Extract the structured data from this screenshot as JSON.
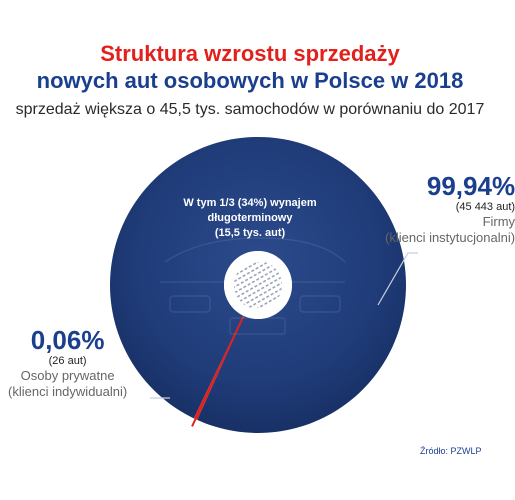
{
  "title_line1": "Struktura wzrostu sprzedaży",
  "title_line2": "nowych aut osobowych w Polsce w 2018",
  "subtitle": "sprzedaż większa o 45,5 tys. samochodów w porównaniu do 2017",
  "source": "Źródło: PZWLP",
  "colors": {
    "title_red": "#e2211c",
    "navy": "#1b3f8f",
    "donut": "#1f3b78",
    "private_slice": "#e2211c"
  },
  "chart_data": {
    "type": "pie",
    "variant": "donut",
    "title": "Struktura wzrostu sprzedaży nowych aut osobowych w Polsce w 2018",
    "slices": [
      {
        "name": "Firmy",
        "description": "(klienci instytucjonalni)",
        "percent": 99.94,
        "percent_label": "99,94%",
        "count": 45443,
        "count_label": "(45 443 aut)"
      },
      {
        "name": "Osoby prywatne",
        "description": "(klienci indywidualni)",
        "percent": 0.06,
        "percent_label": "0,06%",
        "count": 26,
        "count_label": "(26 aut)"
      }
    ],
    "annotation": {
      "lines": [
        "W tym 1/3 (34%) wynajem",
        "długoterminowy",
        "(15,5 tys. aut)"
      ],
      "share": 0.34
    }
  }
}
